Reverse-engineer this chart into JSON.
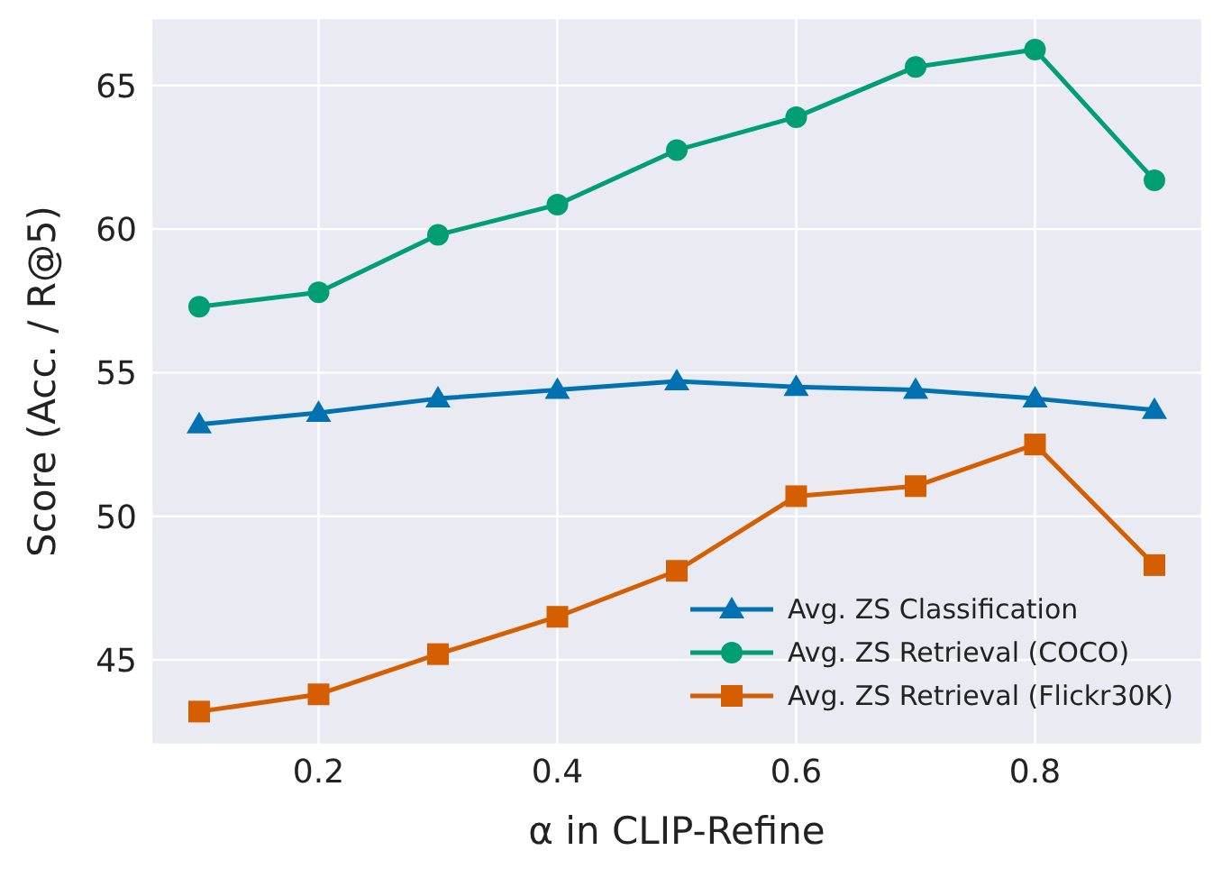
{
  "chart_data": {
    "type": "line",
    "xlabel": "α in CLIP-Refine",
    "ylabel": "Score (Acc. / R@5)",
    "x": [
      0.1,
      0.2,
      0.3,
      0.4,
      0.5,
      0.6,
      0.7,
      0.8,
      0.9
    ],
    "series": [
      {
        "name": "Avg. ZS Classification",
        "color": "#0072b2",
        "marker": "triangle",
        "values": [
          53.2,
          53.6,
          54.1,
          54.4,
          54.7,
          54.5,
          54.4,
          54.1,
          53.7
        ]
      },
      {
        "name": "Avg. ZS Retrieval (COCO)",
        "color": "#009e73",
        "marker": "circle",
        "values": [
          57.3,
          57.8,
          59.8,
          60.85,
          62.75,
          63.9,
          65.65,
          66.25,
          61.7
        ]
      },
      {
        "name": "Avg. ZS Retrieval (Flickr30K)",
        "color": "#d55e00",
        "marker": "square",
        "values": [
          43.2,
          43.8,
          45.2,
          46.5,
          48.1,
          50.7,
          51.05,
          52.5,
          48.3
        ]
      }
    ],
    "xlim": [
      0.06,
      0.94
    ],
    "xticks": [
      0.2,
      0.4,
      0.6,
      0.8
    ],
    "ylim": [
      42.05,
      67.35
    ],
    "yticks": [
      45,
      50,
      55,
      60,
      65
    ],
    "grid": true,
    "legend": "bottom right",
    "line_style": "solid"
  }
}
